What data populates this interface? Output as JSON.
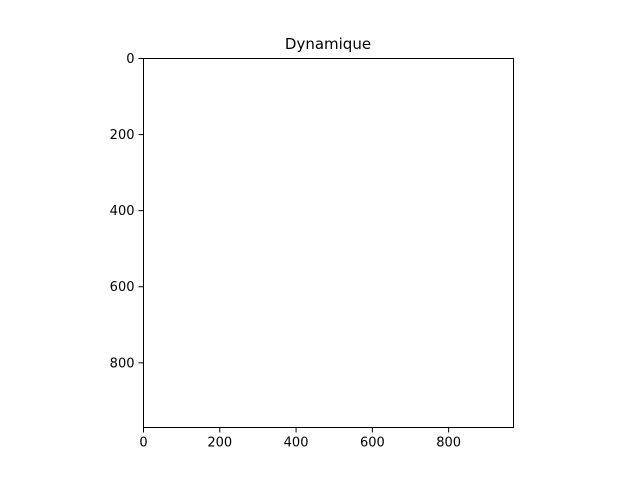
{
  "chart_data": {
    "type": "image",
    "title": "Dynamique",
    "xlabel": "",
    "ylabel": "",
    "xlim": [
      0,
      970
    ],
    "ylim": [
      970,
      0
    ],
    "y_axis_inverted": true,
    "x_ticks": [
      0,
      200,
      400,
      600,
      800
    ],
    "y_ticks": [
      0,
      200,
      400,
      600,
      800
    ],
    "grid": false,
    "legend": "none",
    "image_fill": "#ffffff",
    "series": []
  }
}
